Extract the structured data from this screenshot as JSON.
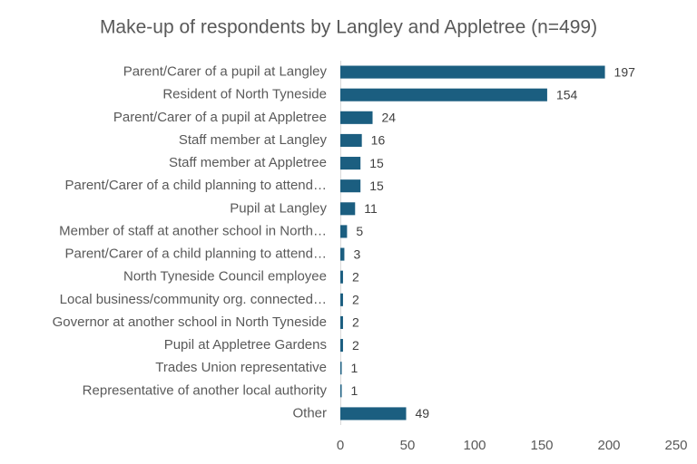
{
  "chart_data": {
    "type": "bar",
    "orientation": "horizontal",
    "title": "Make-up of respondents by Langley and Appletree (n=499)",
    "categories": [
      "Parent/Carer of a pupil at Langley",
      "Resident of North Tyneside",
      "Parent/Carer of a pupil at Appletree",
      "Staff member at Langley",
      "Staff member at Appletree",
      "Parent/Carer of a child planning to attend…",
      "Pupil at Langley",
      "Member of staff at another school in North…",
      "Parent/Carer of a child planning to attend…",
      "North Tyneside Council employee",
      "Local business/community org. connected…",
      "Governor at another school in North Tyneside",
      "Pupil at Appletree Gardens",
      "Trades Union representative",
      "Representative of another local authority",
      "Other"
    ],
    "values": [
      197,
      154,
      24,
      16,
      15,
      15,
      11,
      5,
      3,
      2,
      2,
      2,
      2,
      1,
      1,
      49
    ],
    "color": "#1b5e80",
    "xlim": [
      0,
      250
    ],
    "xticks": [
      0,
      50,
      100,
      150,
      200,
      250
    ],
    "grid": false
  }
}
